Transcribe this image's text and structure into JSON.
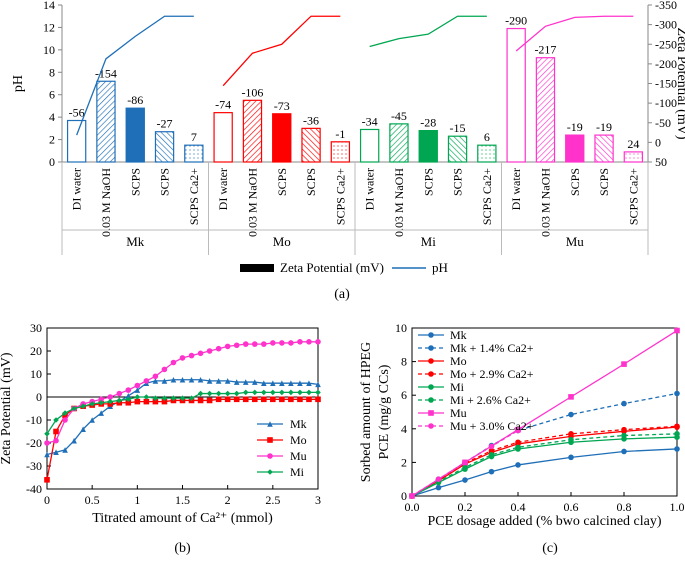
{
  "chart_data": [
    {
      "id": "a",
      "type": "bar",
      "panel_label": "(a)",
      "ylabel_left": "pH",
      "ylabel_right": "Zeta Potential (mV)",
      "ylim_left": [
        0,
        14
      ],
      "yticks_left": [
        0,
        2,
        4,
        6,
        8,
        10,
        12,
        14
      ],
      "ylim_right": [
        50,
        -350
      ],
      "yticks_right": [
        50,
        0,
        -50,
        -100,
        -150,
        -200,
        -250,
        -300,
        -350
      ],
      "legend": [
        "Zeta Potential (mV)",
        "pH"
      ],
      "groups": [
        {
          "name": "Mk",
          "color": "#1f6fb8",
          "categories": [
            "DI water",
            "0.03 M NaOH",
            "SCPS",
            "SCPS",
            "SCPS Ca2+"
          ],
          "zeta": [
            -56,
            -154,
            -86,
            -27,
            7
          ],
          "ph": [
            3.7,
            7.2,
            4.8,
            2.7,
            1.5
          ],
          "ph_line": [
            2.4,
            9.2,
            11.2,
            13.0,
            13.0
          ]
        },
        {
          "name": "Mo",
          "color": "#ff0000",
          "categories": [
            "DI water",
            "0.03 M NaOH",
            "SCPS",
            "SCPS",
            "SCPS Ca2+"
          ],
          "zeta": [
            -74,
            -106,
            -73,
            -36,
            -1
          ],
          "ph": [
            4.4,
            5.5,
            4.3,
            3.0,
            1.8
          ],
          "ph_line": [
            6.8,
            9.7,
            10.5,
            13.0,
            13.0
          ]
        },
        {
          "name": "Mi",
          "color": "#00a651",
          "categories": [
            "DI water",
            "0.03 M NaOH",
            "SCPS",
            "SCPS",
            "SCPS Ca2+"
          ],
          "zeta": [
            -34,
            -45,
            -28,
            -15,
            6
          ],
          "ph": [
            2.9,
            3.4,
            2.8,
            2.3,
            1.5
          ],
          "ph_line": [
            10.3,
            11.0,
            11.4,
            13.0,
            13.0
          ]
        },
        {
          "name": "Mu",
          "color": "#ff33cc",
          "categories": [
            "DI water",
            "0.03 M NaOH",
            "SCPS",
            "SCPS",
            "SCPS Ca2+"
          ],
          "zeta": [
            -290,
            -217,
            -19,
            -19,
            24
          ],
          "ph": [
            11.9,
            9.3,
            2.4,
            2.4,
            0.9
          ],
          "ph_line": [
            9.9,
            12.1,
            12.9,
            13.0,
            13.0
          ]
        }
      ]
    },
    {
      "id": "b",
      "type": "line",
      "panel_label": "(b)",
      "xlabel": "Titrated amount of Ca²⁺ (mmol)",
      "ylabel": "Zeta Potential (mV)",
      "xlim": [
        0,
        3
      ],
      "xticks": [
        0,
        0.5,
        1,
        1.5,
        2,
        2.5,
        3
      ],
      "xtick_labels": [
        "0",
        "0.5",
        "1",
        "1.5",
        "2",
        "2.5",
        "3"
      ],
      "ylim": [
        -40,
        30
      ],
      "yticks": [
        -40,
        -30,
        -20,
        -10,
        0,
        10,
        20,
        30
      ],
      "legend_position": "bottom-right",
      "series": [
        {
          "name": "Mk",
          "color": "#1f6fb8",
          "marker": "triangle",
          "x": [
            0,
            0.1,
            0.2,
            0.3,
            0.4,
            0.5,
            0.6,
            0.7,
            0.8,
            0.9,
            1.0,
            1.1,
            1.2,
            1.3,
            1.4,
            1.5,
            1.6,
            1.7,
            1.8,
            1.9,
            2.0,
            2.1,
            2.2,
            2.3,
            2.4,
            2.5,
            2.6,
            2.7,
            2.8,
            2.9,
            3.0
          ],
          "y": [
            -25,
            -24,
            -23,
            -19,
            -14,
            -10,
            -7,
            -4,
            -2,
            0.5,
            3,
            6,
            7,
            7,
            7.5,
            7.5,
            7.5,
            7.5,
            7,
            7,
            7,
            6.5,
            6.5,
            6.5,
            6,
            6,
            6,
            6,
            6,
            6,
            5.5
          ]
        },
        {
          "name": "Mo",
          "color": "#ff0000",
          "marker": "square",
          "x": [
            0,
            0.1,
            0.2,
            0.3,
            0.4,
            0.5,
            0.6,
            0.7,
            0.8,
            0.9,
            1.0,
            1.1,
            1.2,
            1.3,
            1.4,
            1.5,
            1.6,
            1.7,
            1.8,
            1.9,
            2.0,
            2.1,
            2.2,
            2.3,
            2.4,
            2.5,
            2.6,
            2.7,
            2.8,
            2.9,
            3.0
          ],
          "y": [
            -36,
            -15,
            -8,
            -5,
            -4,
            -3.5,
            -3,
            -3,
            -2.5,
            -2.5,
            -2,
            -2,
            -2,
            -2,
            -1.5,
            -1.5,
            -1.5,
            -1.5,
            -1.5,
            -1,
            -1,
            -1,
            -1,
            -1,
            -1,
            -1,
            -1,
            -1,
            -1,
            -1,
            -1
          ]
        },
        {
          "name": "Mu",
          "color": "#ff33cc",
          "marker": "circle",
          "x": [
            0,
            0.1,
            0.2,
            0.3,
            0.4,
            0.5,
            0.6,
            0.7,
            0.8,
            0.9,
            1.0,
            1.1,
            1.2,
            1.3,
            1.4,
            1.5,
            1.6,
            1.7,
            1.8,
            1.9,
            2.0,
            2.1,
            2.2,
            2.3,
            2.4,
            2.5,
            2.6,
            2.7,
            2.8,
            2.9,
            3.0
          ],
          "y": [
            -20,
            -19,
            -10,
            -5,
            -3,
            -2,
            -1,
            0,
            1.5,
            3,
            5,
            7,
            9,
            12,
            15,
            17,
            18,
            19,
            20,
            21,
            22,
            22.5,
            23,
            23,
            23,
            23.5,
            23.5,
            23.5,
            24,
            24,
            24
          ]
        },
        {
          "name": "Mi",
          "color": "#00a651",
          "marker": "diamond",
          "x": [
            0,
            0.1,
            0.2,
            0.3,
            0.4,
            0.5,
            0.6,
            0.7,
            0.8,
            0.9,
            1.0,
            1.1,
            1.2,
            1.3,
            1.4,
            1.5,
            1.6,
            1.7,
            1.8,
            1.9,
            2.0,
            2.1,
            2.2,
            2.3,
            2.4,
            2.5,
            2.6,
            2.7,
            2.8,
            2.9,
            3.0
          ],
          "y": [
            -16,
            -10,
            -7,
            -5,
            -4,
            -3,
            -2.5,
            -2,
            -1.5,
            -1,
            0,
            0,
            -0.5,
            -0.5,
            -0.5,
            -0.5,
            -0.5,
            1.5,
            1.5,
            1.5,
            1.5,
            1.5,
            2,
            2,
            2,
            2,
            2,
            2,
            2,
            2,
            2
          ]
        }
      ]
    },
    {
      "id": "c",
      "type": "line",
      "panel_label": "(c)",
      "xlabel": "PCE dosage added (% bwo calcined clay)",
      "ylabel": "Sorbed amount of HPEG PCE (mg/g CCs)",
      "xlim": [
        0,
        1
      ],
      "xticks": [
        0,
        0.2,
        0.4,
        0.6,
        0.8,
        1.0
      ],
      "xtick_labels": [
        "0.0",
        "0.2",
        "0.4",
        "0.6",
        "0.8",
        "1.0"
      ],
      "ylim": [
        0,
        10
      ],
      "yticks": [
        0,
        2,
        4,
        6,
        8,
        10
      ],
      "legend_position": "top-left",
      "series": [
        {
          "name": "Mk",
          "color": "#1f6fb8",
          "marker": "circle",
          "dashed": false,
          "x": [
            0,
            0.1,
            0.2,
            0.3,
            0.4,
            0.6,
            0.8,
            1.0
          ],
          "y": [
            0,
            0.5,
            0.95,
            1.45,
            1.85,
            2.3,
            2.65,
            2.8
          ]
        },
        {
          "name": "Mk + 1.4% Ca2+",
          "color": "#1f6fb8",
          "marker": "circle",
          "dashed": true,
          "x": [
            0,
            0.1,
            0.2,
            0.3,
            0.4,
            0.6,
            0.8,
            1.0
          ],
          "y": [
            0,
            1.0,
            2.0,
            3.0,
            3.9,
            4.85,
            5.5,
            6.1
          ]
        },
        {
          "name": "Mo",
          "color": "#ff0000",
          "marker": "circle",
          "dashed": false,
          "x": [
            0,
            0.1,
            0.2,
            0.3,
            0.4,
            0.6,
            0.8,
            1.0
          ],
          "y": [
            0,
            0.9,
            1.9,
            2.6,
            3.1,
            3.55,
            3.85,
            4.1
          ]
        },
        {
          "name": "Mo + 2.9% Ca2+",
          "color": "#ff0000",
          "marker": "circle",
          "dashed": true,
          "x": [
            0,
            0.1,
            0.2,
            0.3,
            0.4,
            0.6,
            0.8,
            1.0
          ],
          "y": [
            0,
            0.95,
            1.95,
            2.7,
            3.2,
            3.7,
            3.95,
            4.15
          ]
        },
        {
          "name": "Mi",
          "color": "#00a651",
          "marker": "circle",
          "dashed": false,
          "x": [
            0,
            0.1,
            0.2,
            0.3,
            0.4,
            0.6,
            0.8,
            1.0
          ],
          "y": [
            0,
            0.8,
            1.6,
            2.35,
            2.8,
            3.2,
            3.4,
            3.5
          ]
        },
        {
          "name": "Mi + 2.6% Ca2+",
          "color": "#00a651",
          "marker": "circle",
          "dashed": true,
          "x": [
            0,
            0.1,
            0.2,
            0.3,
            0.4,
            0.6,
            0.8,
            1.0
          ],
          "y": [
            0,
            0.85,
            1.7,
            2.45,
            2.9,
            3.35,
            3.6,
            3.7
          ]
        },
        {
          "name": "Mu",
          "color": "#ff33cc",
          "marker": "square",
          "dashed": false,
          "x": [
            0,
            0.2,
            0.4,
            0.6,
            0.8,
            1.0
          ],
          "y": [
            0,
            2.0,
            3.95,
            5.9,
            7.85,
            9.85
          ]
        },
        {
          "name": "Mu + 3.0% Ca2+",
          "color": "#ff33cc",
          "marker": "circle",
          "dashed": true,
          "x": [
            0,
            0.1,
            0.2,
            0.3,
            0.4
          ],
          "y": [
            0,
            1.0,
            2.0,
            2.95,
            3.9
          ]
        }
      ]
    }
  ]
}
